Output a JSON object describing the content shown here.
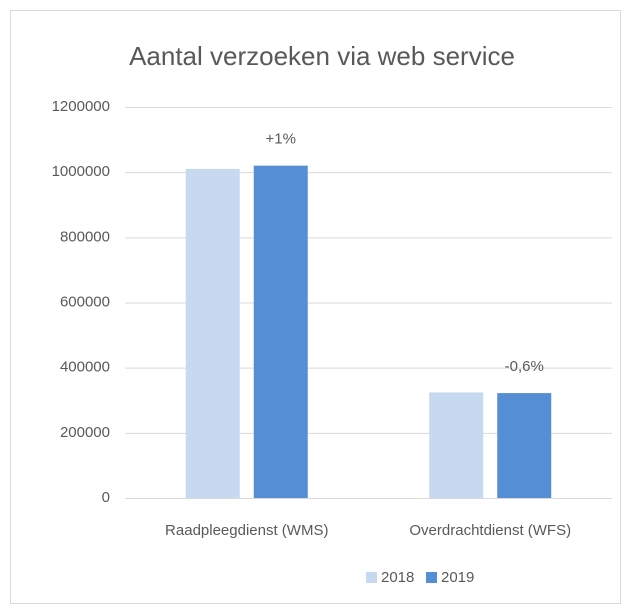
{
  "chart_data": {
    "type": "bar",
    "title": "Aantal verzoeken via web service",
    "categories": [
      "Raadpleegdienst (WMS)",
      "Overdrachtdienst (WFS)"
    ],
    "series": [
      {
        "name": "2018",
        "color": "#c6d9f0",
        "values": [
          1010000,
          324000
        ]
      },
      {
        "name": "2019",
        "color": "#558ed5",
        "values": [
          1020000,
          322000
        ]
      }
    ],
    "annotations": [
      "+1%",
      "-0,6%"
    ],
    "ylim": [
      0,
      1200000
    ],
    "yticks": [
      0,
      200000,
      400000,
      600000,
      800000,
      1000000,
      1200000
    ],
    "grid": true,
    "legend": "bottom"
  }
}
